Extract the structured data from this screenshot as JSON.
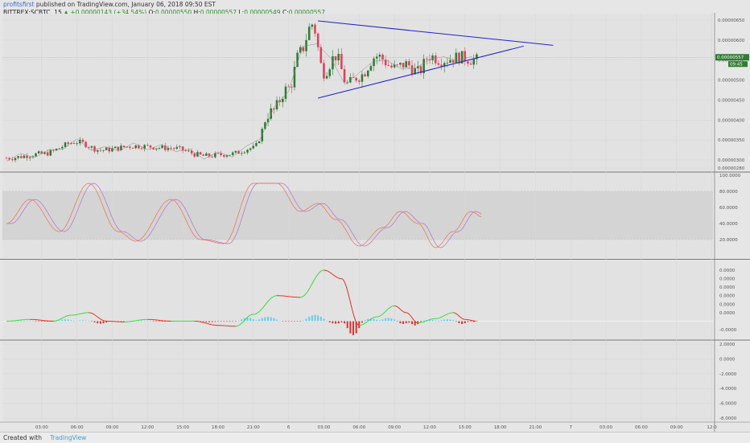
{
  "header": {
    "author": "profitsfirst",
    "published": "published on TradingView.com, January 06, 2018 09:50 EST",
    "symbol": "BITTREX:SCBTC, 15",
    "change": "+0.00000143 (+34.54%)",
    "o_label": "O:",
    "o_value": "0.00000550",
    "h_label": "H:",
    "h_value": "0.00000557",
    "l_label": "L:",
    "l_value": "0.00000549",
    "c_label": "C:",
    "c_value": "0.00000557"
  },
  "footer": {
    "created": "Created with",
    "brand": "TradingView"
  },
  "colors": {
    "bull": "#2e7d32",
    "bear": "#e0405a",
    "trend": "#2222cc",
    "stoch_k": "#f07040",
    "stoch_d": "#b070d0",
    "macd_up": "#33dd33",
    "macd_down": "#e03020"
  },
  "chart_data": {
    "type": "line",
    "price_axis": {
      "ticks": [
        "0.00000650",
        "0.00000600",
        "0.00000550",
        "0.00000500",
        "0.00000450",
        "0.00000400",
        "0.00000350",
        "0.00000300",
        "0.00000280"
      ],
      "tick_values": [
        6.5e-06,
        6e-06,
        5.5e-06,
        5e-06,
        4.5e-06,
        4e-06,
        3.5e-06,
        3e-06,
        2.8e-06
      ],
      "last_price": "0.00000557",
      "countdown": "09:45"
    },
    "stoch_axis": {
      "ticks": [
        "100.0000",
        "80.0000",
        "60.0000",
        "40.0000",
        "20.0000"
      ],
      "range": [
        0,
        100
      ]
    },
    "macd_axis": {
      "ticks": [
        "0.0000",
        "0.0000",
        "0.0000",
        "0.0000",
        "0.0000",
        "0.0000",
        "-0.0000"
      ],
      "tick_values": [
        0.6,
        0.5,
        0.4,
        0.3,
        0.2,
        0.1,
        -0.1
      ],
      "range": [
        -0.2,
        0.8
      ]
    },
    "lower_axis": {
      "ticks": [
        "2.0000",
        "0.0000",
        "-2.0000",
        "-4.0000",
        "-6.0000",
        "-8.0000"
      ],
      "tick_values": [
        2,
        0,
        -2,
        -4,
        -6,
        -8
      ],
      "range": [
        -8.5,
        2.5
      ]
    },
    "time_axis": {
      "labels": [
        "03:00",
        "06:00",
        "09:00",
        "12:00",
        "15:00",
        "18:00",
        "21:00",
        "6",
        "03:00",
        "06:00",
        "09:00",
        "12:00",
        "15:00",
        "18:00",
        "21:00",
        "7",
        "03:00",
        "06:00",
        "09:00",
        "12:0"
      ],
      "steps": [
        3,
        6,
        9,
        12,
        15,
        18,
        21,
        24,
        27,
        30,
        33,
        36,
        39,
        42,
        45,
        48,
        51,
        54,
        57,
        60
      ]
    },
    "price_keypoints": [
      [
        0,
        3.05
      ],
      [
        3,
        3.15
      ],
      [
        6,
        3.45
      ],
      [
        8,
        3.25
      ],
      [
        11,
        3.35
      ],
      [
        14,
        3.3
      ],
      [
        17,
        3.1
      ],
      [
        19,
        3.15
      ],
      [
        21,
        3.3
      ],
      [
        22.5,
        4.2
      ],
      [
        24,
        4.8
      ],
      [
        25,
        5.7
      ],
      [
        26,
        6.4
      ],
      [
        27,
        5.2
      ],
      [
        28,
        5.6
      ],
      [
        29,
        4.9
      ],
      [
        30,
        5.1
      ],
      [
        31.5,
        5.6
      ],
      [
        33,
        5.3
      ],
      [
        34,
        5.4
      ],
      [
        35,
        5.2
      ],
      [
        36,
        5.6
      ],
      [
        37,
        5.5
      ],
      [
        38.5,
        5.57
      ],
      [
        40,
        5.5
      ]
    ],
    "trendlines": {
      "upper": {
        "from": [
          26.5,
          6.48
        ],
        "to": [
          46.5,
          5.87
        ]
      },
      "lower": {
        "from": [
          26.5,
          4.55
        ],
        "to": [
          44,
          5.85
        ]
      }
    },
    "stoch_keypoints": [
      [
        0,
        40
      ],
      [
        2,
        70
      ],
      [
        4.5,
        30
      ],
      [
        7,
        90
      ],
      [
        9.5,
        30
      ],
      [
        11,
        18
      ],
      [
        14,
        70
      ],
      [
        16.5,
        20
      ],
      [
        18.5,
        15
      ],
      [
        21,
        90
      ],
      [
        23,
        90
      ],
      [
        25,
        55
      ],
      [
        26.5,
        65
      ],
      [
        28,
        45
      ],
      [
        30,
        12
      ],
      [
        32,
        35
      ],
      [
        33.5,
        55
      ],
      [
        35,
        40
      ],
      [
        36.5,
        10
      ],
      [
        38,
        30
      ],
      [
        39.5,
        55
      ],
      [
        40.5,
        48
      ]
    ],
    "macd_keypoints": [
      [
        0,
        0.0
      ],
      [
        2,
        0.02
      ],
      [
        4,
        0.0
      ],
      [
        5.5,
        0.07
      ],
      [
        7,
        0.1
      ],
      [
        8.5,
        0.0
      ],
      [
        10,
        -0.01
      ],
      [
        12,
        0.02
      ],
      [
        14,
        0.0
      ],
      [
        16,
        0.0
      ],
      [
        18,
        -0.05
      ],
      [
        19.5,
        -0.06
      ],
      [
        21,
        0.08
      ],
      [
        23,
        0.3
      ],
      [
        25,
        0.28
      ],
      [
        27,
        0.6
      ],
      [
        28.5,
        0.5
      ],
      [
        30,
        -0.05
      ],
      [
        31.5,
        0.05
      ],
      [
        33,
        0.18
      ],
      [
        34,
        0.1
      ],
      [
        35,
        -0.02
      ],
      [
        36.5,
        0.03
      ],
      [
        38,
        0.1
      ],
      [
        39,
        0.02
      ],
      [
        40,
        0.0
      ]
    ]
  }
}
